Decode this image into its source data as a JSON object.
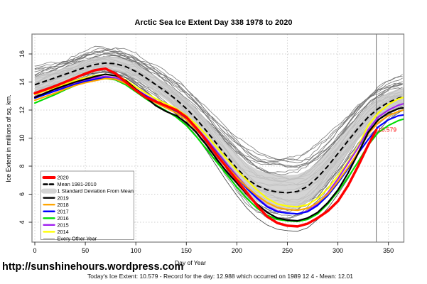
{
  "title": "Arctic Sea Ice Extent Day 338 1978 to 2020",
  "footer": {
    "url": "http://sunshinehours.wordpress.com",
    "summary": "Today's Ice Extent: 10.579  - Record for the day: 12.988 which occurred on 1989 12 4  - Mean: 12.01"
  },
  "legend": {
    "items": [
      {
        "label": "2020",
        "color": "#FF0000",
        "lw": 4,
        "dash": ""
      },
      {
        "label": "Mean 1981-2010",
        "color": "#000000",
        "lw": 2.6,
        "dash": "5,3.5"
      },
      {
        "label": "1 Standard Deviation From Mean",
        "color": "#D3D3D3",
        "lw": 7,
        "dash": ""
      },
      {
        "label": "2019",
        "color": "#000000",
        "lw": 2.4,
        "dash": ""
      },
      {
        "label": "2018",
        "color": "#FFA500",
        "lw": 2.4,
        "dash": ""
      },
      {
        "label": "2017",
        "color": "#0000FF",
        "lw": 2.4,
        "dash": ""
      },
      {
        "label": "2016",
        "color": "#00DD00",
        "lw": 2.4,
        "dash": ""
      },
      {
        "label": "2015",
        "color": "#A020F0",
        "lw": 2.4,
        "dash": ""
      },
      {
        "label": "2014",
        "color": "#FFFF00",
        "lw": 2.4,
        "dash": ""
      },
      {
        "label": "Every Other Year",
        "color": "#A8A8A8",
        "lw": 1.2,
        "dash": ""
      }
    ]
  },
  "chart_data": {
    "type": "line",
    "title": "Arctic Sea Ice Extent Day 338 1978 to 2020",
    "xlabel": "Day of Year",
    "ylabel": "Ice Extent in millions of sq. km.",
    "xlim": [
      0,
      370
    ],
    "ylim": [
      2.6,
      17.4
    ],
    "xticks": [
      0,
      50,
      100,
      150,
      200,
      250,
      300,
      350
    ],
    "yticks": [
      4,
      6,
      8,
      10,
      12,
      14,
      16
    ],
    "grid": "dotted",
    "grid_color": "#CFCFCF",
    "vline_day": 338,
    "annotation": {
      "text": "10.579",
      "color": "#FF0000",
      "day": 338,
      "value": 10.579
    },
    "x": [
      0,
      10,
      20,
      30,
      40,
      50,
      60,
      70,
      80,
      90,
      100,
      110,
      120,
      130,
      140,
      150,
      160,
      170,
      180,
      190,
      200,
      210,
      220,
      230,
      240,
      250,
      260,
      270,
      280,
      290,
      300,
      310,
      320,
      330,
      340,
      350,
      360,
      365
    ],
    "mean_1981_2010": [
      13.8,
      14.05,
      14.3,
      14.55,
      14.8,
      15.05,
      15.25,
      15.35,
      15.3,
      15.1,
      14.75,
      14.3,
      13.8,
      13.3,
      12.75,
      12.1,
      11.35,
      10.5,
      9.6,
      8.7,
      7.85,
      7.1,
      6.6,
      6.3,
      6.15,
      6.1,
      6.2,
      6.55,
      7.2,
      8.0,
      8.9,
      9.8,
      10.7,
      11.5,
      12.1,
      12.55,
      12.85,
      12.95
    ],
    "std_dev": [
      0.55,
      0.55,
      0.5,
      0.5,
      0.5,
      0.5,
      0.5,
      0.5,
      0.5,
      0.5,
      0.55,
      0.55,
      0.6,
      0.6,
      0.65,
      0.7,
      0.75,
      0.8,
      0.85,
      0.9,
      1.0,
      1.1,
      1.15,
      1.2,
      1.25,
      1.25,
      1.2,
      1.15,
      1.1,
      1.0,
      0.95,
      0.9,
      0.85,
      0.8,
      0.75,
      0.7,
      0.65,
      0.65
    ],
    "series": [
      {
        "name": "record-low-year",
        "color": "#3a3a3a",
        "lw": 0.8,
        "order": 0,
        "values": [
          13.3,
          13.55,
          13.8,
          14.05,
          14.3,
          14.5,
          14.65,
          14.7,
          14.6,
          14.3,
          13.8,
          13.3,
          12.8,
          12.3,
          11.7,
          11.0,
          10.1,
          9.1,
          8.0,
          6.9,
          5.9,
          5.0,
          4.3,
          3.8,
          3.5,
          3.4,
          3.35,
          3.6,
          4.2,
          5.0,
          6.0,
          7.1,
          8.3,
          9.5,
          10.5,
          11.3,
          11.8,
          12.0
        ]
      },
      {
        "name": "2014",
        "color": "#FFFF00",
        "lw": 2.1,
        "order": 1,
        "values": [
          13.1,
          13.35,
          13.6,
          13.85,
          14.1,
          14.3,
          14.45,
          14.55,
          14.45,
          14.15,
          13.65,
          13.2,
          12.8,
          12.45,
          12.1,
          11.6,
          10.95,
          10.2,
          9.35,
          8.5,
          7.7,
          7.0,
          6.3,
          5.7,
          5.3,
          5.15,
          5.1,
          5.25,
          5.7,
          6.4,
          7.3,
          8.3,
          9.4,
          10.9,
          11.8,
          12.4,
          12.8,
          12.9
        ]
      },
      {
        "name": "2015",
        "color": "#A020F0",
        "lw": 2.1,
        "order": 2,
        "values": [
          12.95,
          13.2,
          13.45,
          13.7,
          13.95,
          14.15,
          14.3,
          14.4,
          14.3,
          14.0,
          13.5,
          13.05,
          12.65,
          12.3,
          11.95,
          11.45,
          10.75,
          9.95,
          9.05,
          8.15,
          7.3,
          6.5,
          5.75,
          5.15,
          4.8,
          4.65,
          4.6,
          4.8,
          5.3,
          6.1,
          7.1,
          8.2,
          9.3,
          10.6,
          11.5,
          12.0,
          12.35,
          12.45
        ]
      },
      {
        "name": "2016",
        "color": "#00DD00",
        "lw": 2.1,
        "order": 3,
        "values": [
          12.5,
          12.8,
          13.1,
          13.45,
          13.75,
          14.0,
          14.15,
          14.25,
          14.15,
          13.8,
          13.3,
          12.8,
          12.35,
          11.95,
          11.5,
          10.9,
          10.1,
          9.2,
          8.3,
          7.4,
          6.5,
          5.7,
          5.0,
          4.5,
          4.2,
          4.1,
          4.05,
          4.2,
          4.6,
          5.3,
          6.2,
          7.2,
          8.3,
          9.5,
          10.4,
          10.9,
          11.25,
          11.35
        ]
      },
      {
        "name": "2017",
        "color": "#0000FF",
        "lw": 2.1,
        "order": 4,
        "values": [
          12.85,
          13.1,
          13.35,
          13.6,
          13.85,
          14.05,
          14.2,
          14.3,
          14.2,
          13.9,
          13.45,
          13.0,
          12.6,
          12.2,
          11.85,
          11.35,
          10.65,
          9.85,
          8.95,
          8.05,
          7.2,
          6.4,
          5.7,
          5.1,
          4.75,
          4.65,
          4.6,
          4.75,
          5.2,
          5.9,
          6.8,
          7.8,
          8.9,
          9.9,
          10.8,
          11.3,
          11.6,
          11.65
        ]
      },
      {
        "name": "2018",
        "color": "#FFA500",
        "lw": 2.1,
        "order": 5,
        "values": [
          12.7,
          12.95,
          13.2,
          13.5,
          13.75,
          13.95,
          14.1,
          14.25,
          14.2,
          13.9,
          13.4,
          12.9,
          12.5,
          12.15,
          11.8,
          11.3,
          10.6,
          9.8,
          8.9,
          8.0,
          7.2,
          6.5,
          5.9,
          5.4,
          5.05,
          4.9,
          4.85,
          5.0,
          5.4,
          6.0,
          6.9,
          7.9,
          9.0,
          10.3,
          11.1,
          11.6,
          11.9,
          12.0
        ]
      },
      {
        "name": "2019",
        "color": "#000000",
        "lw": 2.2,
        "order": 6,
        "values": [
          12.9,
          13.2,
          13.5,
          13.75,
          14.0,
          14.2,
          14.4,
          14.55,
          14.45,
          14.1,
          13.5,
          12.9,
          12.3,
          11.9,
          11.6,
          11.1,
          10.4,
          9.5,
          8.5,
          7.6,
          6.8,
          6.0,
          5.3,
          4.7,
          4.3,
          4.15,
          4.1,
          4.3,
          4.7,
          5.4,
          6.3,
          7.5,
          8.9,
          10.4,
          11.3,
          11.8,
          12.1,
          12.15
        ]
      },
      {
        "name": "2020",
        "color": "#FF0000",
        "lw": 3.5,
        "order": 7,
        "days": [
          0,
          10,
          20,
          30,
          40,
          50,
          60,
          70,
          80,
          90,
          100,
          110,
          120,
          130,
          140,
          150,
          160,
          170,
          180,
          190,
          200,
          210,
          220,
          230,
          240,
          250,
          260,
          270,
          280,
          290,
          300,
          310,
          320,
          330,
          338
        ],
        "values": [
          13.2,
          13.45,
          13.7,
          14.0,
          14.3,
          14.6,
          14.85,
          14.95,
          14.6,
          14.0,
          13.4,
          12.9,
          12.6,
          12.3,
          12.0,
          11.5,
          10.7,
          9.8,
          8.8,
          7.9,
          7.0,
          6.1,
          5.2,
          4.4,
          3.95,
          3.75,
          3.7,
          3.9,
          4.3,
          4.8,
          5.5,
          6.6,
          8.0,
          9.5,
          10.579
        ]
      }
    ],
    "background": {
      "label": "Every Other Year",
      "color": "#6F6F6F",
      "count": 33,
      "f_max": 2.05,
      "f_min": -1.55,
      "seed": 7
    },
    "legend_position": "bottom-left"
  }
}
